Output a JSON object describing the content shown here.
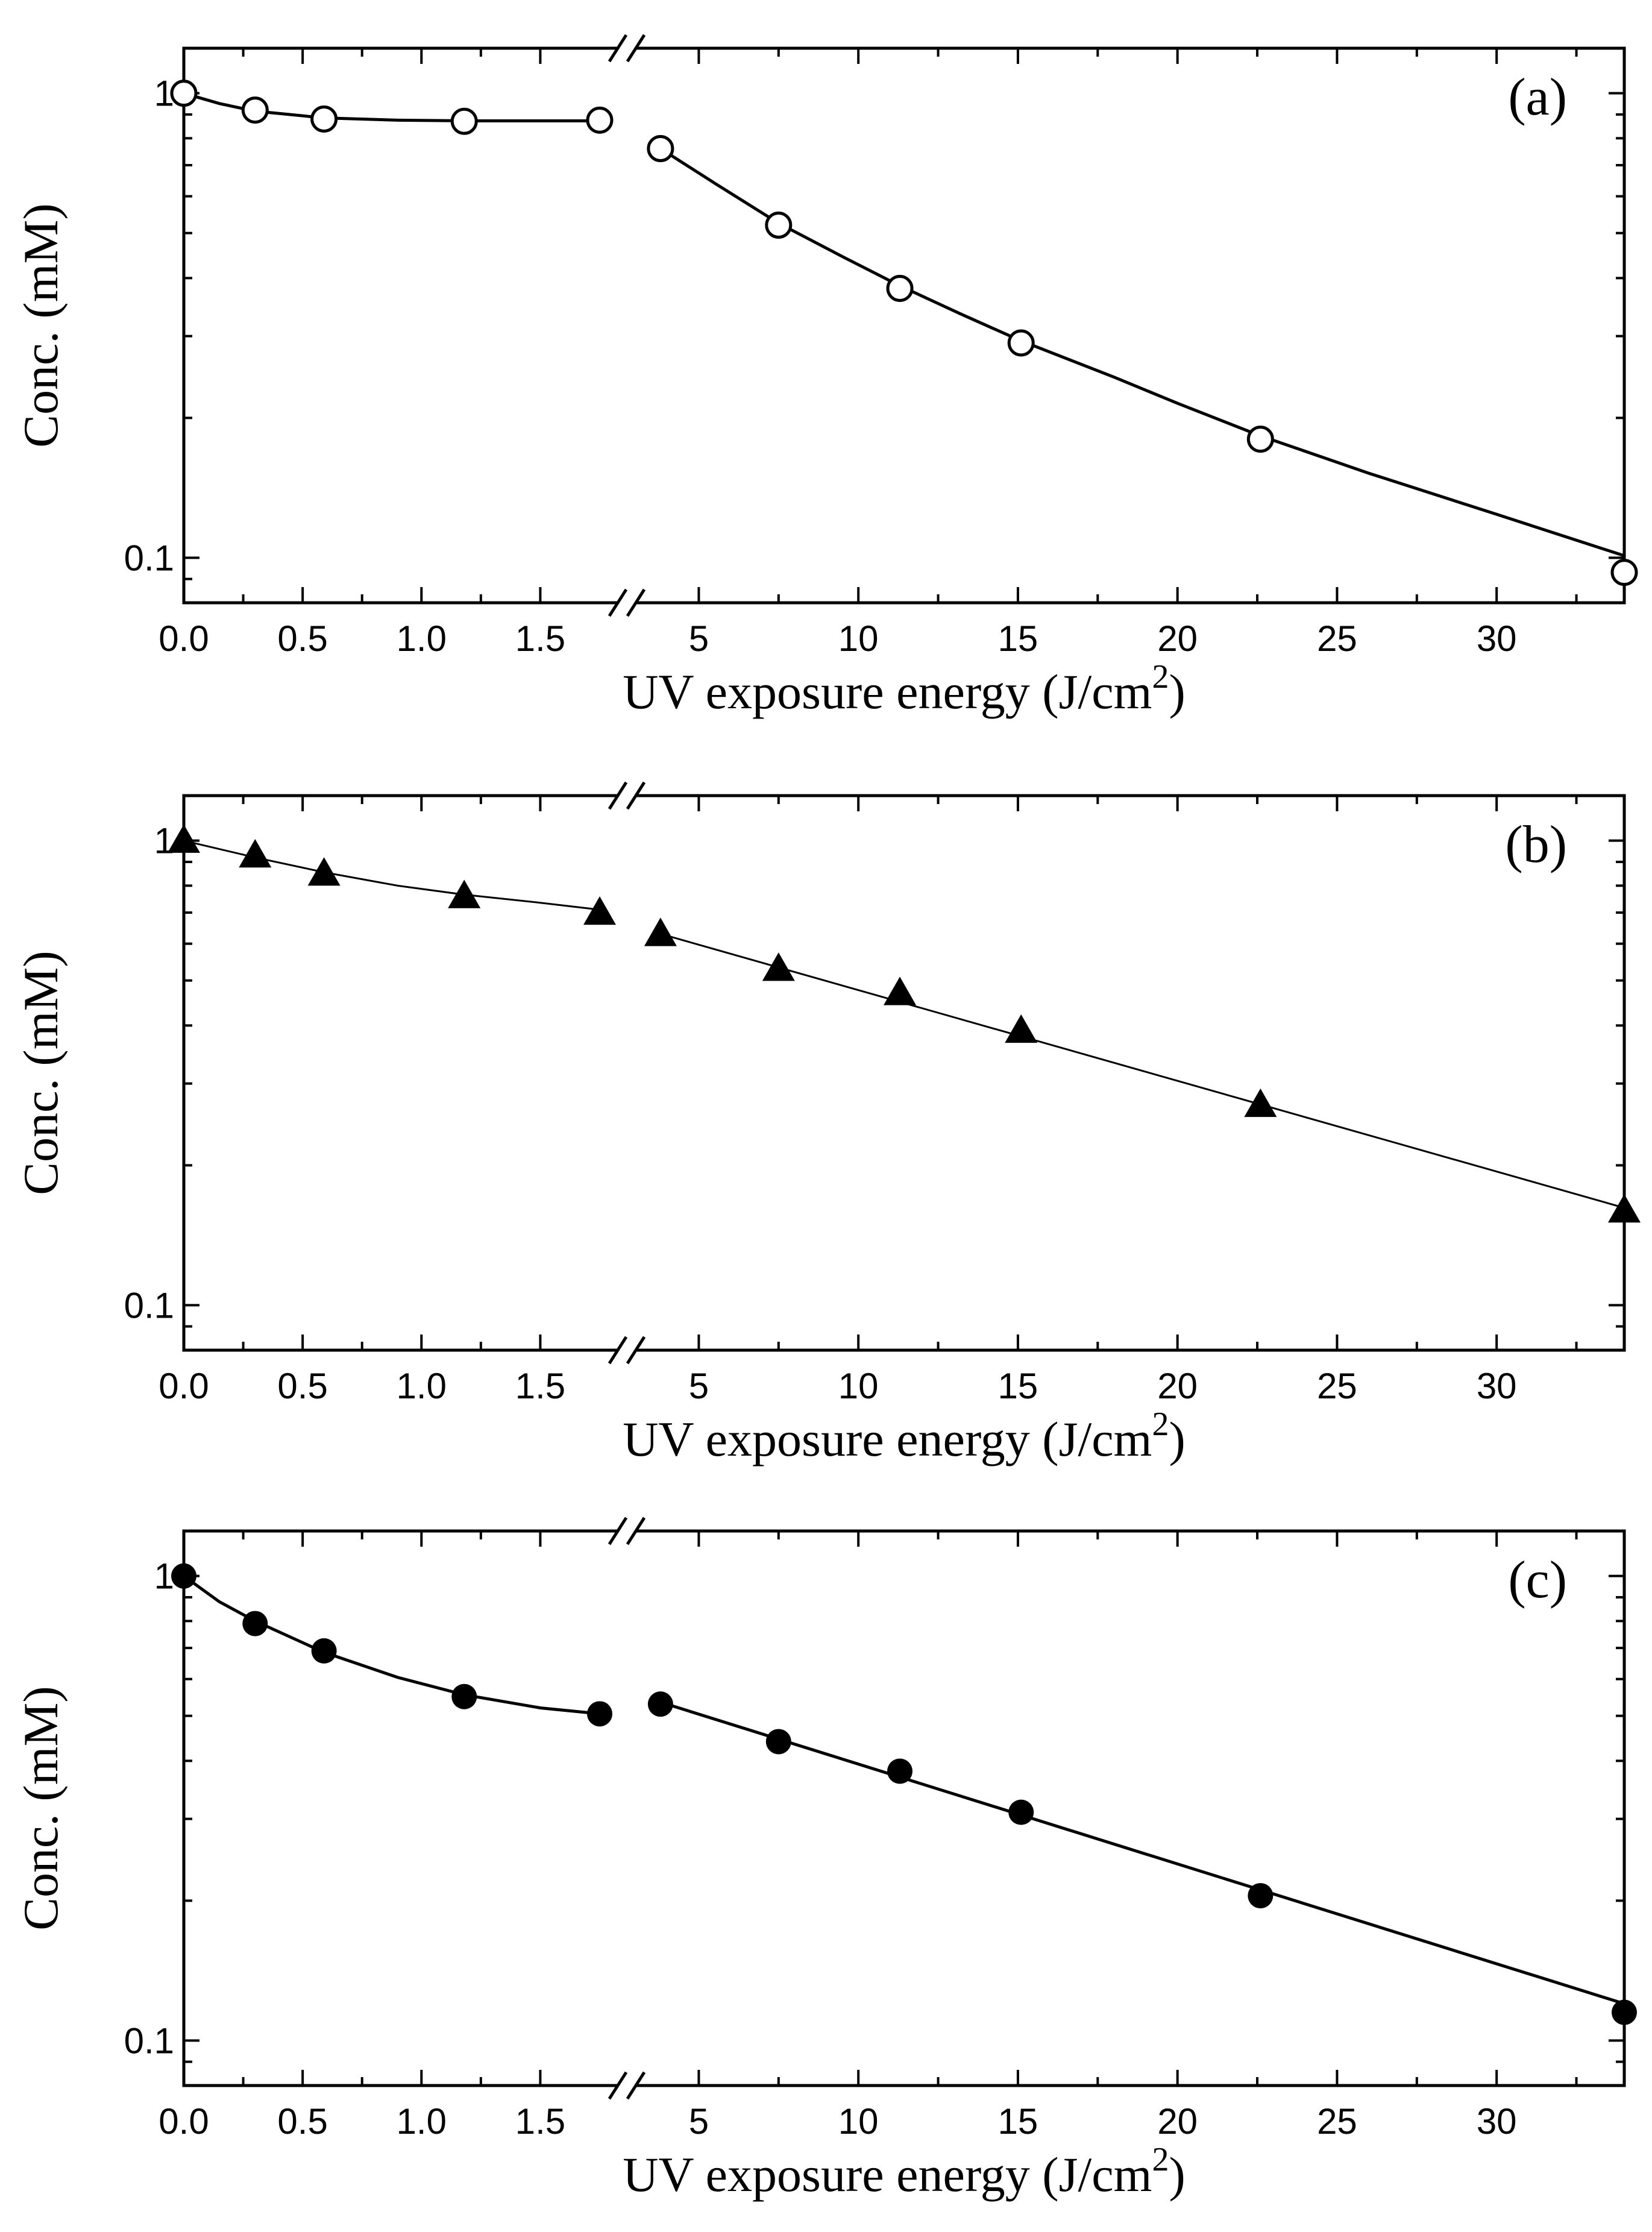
{
  "chart_data": [
    {
      "type": "scatter",
      "panel_label": "(a)",
      "marker": "open-circle",
      "xlabel": "UV exposure energy (J/cm",
      "xlabel_sup": "2",
      "xlabel_close": ")",
      "ylabel": "Conc. (mM)",
      "yscale": "log",
      "ylim": [
        0.08,
        1.25
      ],
      "y_ticks": [
        {
          "value": 0.1,
          "label": "0.1"
        },
        {
          "value": 1,
          "label": "1"
        }
      ],
      "x_break": true,
      "x_left_range": [
        0,
        1.75
      ],
      "x_right_range": [
        3.5,
        34
      ],
      "x_ticks_left": [
        {
          "value": 0.0,
          "label": "0.0"
        },
        {
          "value": 0.5,
          "label": "0.5"
        },
        {
          "value": 1.0,
          "label": "1.0"
        },
        {
          "value": 1.5,
          "label": "1.5"
        }
      ],
      "x_ticks_right": [
        {
          "value": 5,
          "label": "5"
        },
        {
          "value": 10,
          "label": "10"
        },
        {
          "value": 15,
          "label": "15"
        },
        {
          "value": 20,
          "label": "20"
        },
        {
          "value": 25,
          "label": "25"
        },
        {
          "value": 30,
          "label": "30"
        }
      ],
      "points_left": [
        [
          0.0,
          1.0
        ],
        [
          0.3,
          0.92
        ],
        [
          0.59,
          0.88
        ],
        [
          1.18,
          0.87
        ],
        [
          1.75,
          0.875
        ]
      ],
      "points_right": [
        [
          3.8,
          0.76
        ],
        [
          7.5,
          0.52
        ],
        [
          11.3,
          0.38
        ],
        [
          15.1,
          0.29
        ],
        [
          22.6,
          0.18
        ],
        [
          34,
          0.093
        ]
      ],
      "curve_left": [
        [
          0.0,
          1.0
        ],
        [
          0.15,
          0.95
        ],
        [
          0.3,
          0.915
        ],
        [
          0.59,
          0.885
        ],
        [
          0.9,
          0.875
        ],
        [
          1.18,
          0.872
        ],
        [
          1.75,
          0.872
        ]
      ],
      "curve_right": [
        [
          3.8,
          0.76
        ],
        [
          5.5,
          0.64
        ],
        [
          7.5,
          0.525
        ],
        [
          9.5,
          0.445
        ],
        [
          11.3,
          0.385
        ],
        [
          13.2,
          0.335
        ],
        [
          15.1,
          0.293
        ],
        [
          18,
          0.245
        ],
        [
          20,
          0.215
        ],
        [
          22.6,
          0.183
        ],
        [
          26,
          0.152
        ],
        [
          30,
          0.124
        ],
        [
          34,
          0.101
        ]
      ],
      "curve_weight": "bold"
    },
    {
      "type": "scatter",
      "panel_label": "(b)",
      "marker": "filled-triangle",
      "xlabel": "UV exposure energy (J/cm",
      "xlabel_sup": "2",
      "xlabel_close": ")",
      "ylabel": "Conc. (mM)",
      "yscale": "log",
      "ylim": [
        0.08,
        1.25
      ],
      "y_ticks": [
        {
          "value": 0.1,
          "label": "0.1"
        },
        {
          "value": 1,
          "label": "1"
        }
      ],
      "x_break": true,
      "x_left_range": [
        0,
        1.75
      ],
      "x_right_range": [
        3.5,
        34
      ],
      "x_ticks_left": [
        {
          "value": 0.0,
          "label": "0.0"
        },
        {
          "value": 0.5,
          "label": "0.5"
        },
        {
          "value": 1.0,
          "label": "1.0"
        },
        {
          "value": 1.5,
          "label": "1.5"
        }
      ],
      "x_ticks_right": [
        {
          "value": 5,
          "label": "5"
        },
        {
          "value": 10,
          "label": "10"
        },
        {
          "value": 15,
          "label": "15"
        },
        {
          "value": 20,
          "label": "20"
        },
        {
          "value": 25,
          "label": "25"
        },
        {
          "value": 30,
          "label": "30"
        }
      ],
      "points_left": [
        [
          0.0,
          1.0
        ],
        [
          0.3,
          0.93
        ],
        [
          0.59,
          0.85
        ],
        [
          1.18,
          0.76
        ],
        [
          1.75,
          0.7
        ]
      ],
      "points_right": [
        [
          3.8,
          0.63
        ],
        [
          7.5,
          0.53
        ],
        [
          11.3,
          0.47
        ],
        [
          15.1,
          0.39
        ],
        [
          22.6,
          0.27
        ],
        [
          34,
          0.16
        ]
      ],
      "curve_left": [
        [
          0.0,
          1.0
        ],
        [
          0.3,
          0.92
        ],
        [
          0.59,
          0.855
        ],
        [
          0.9,
          0.8
        ],
        [
          1.18,
          0.765
        ],
        [
          1.5,
          0.735
        ],
        [
          1.75,
          0.71
        ]
      ],
      "curve_right": [
        [
          3.8,
          0.63
        ],
        [
          34,
          0.162
        ]
      ],
      "curve_weight": "thin"
    },
    {
      "type": "scatter",
      "panel_label": "(c)",
      "marker": "filled-circle",
      "xlabel": "UV exposure energy (J/cm",
      "xlabel_sup": "2",
      "xlabel_close": ")",
      "ylabel": "Conc. (mM)",
      "yscale": "log",
      "ylim": [
        0.08,
        1.25
      ],
      "y_ticks": [
        {
          "value": 0.1,
          "label": "0.1"
        },
        {
          "value": 1,
          "label": "1"
        }
      ],
      "x_break": true,
      "x_left_range": [
        0,
        1.75
      ],
      "x_right_range": [
        3.5,
        34
      ],
      "x_ticks_left": [
        {
          "value": 0.0,
          "label": "0.0"
        },
        {
          "value": 0.5,
          "label": "0.5"
        },
        {
          "value": 1.0,
          "label": "1.0"
        },
        {
          "value": 1.5,
          "label": "1.5"
        }
      ],
      "x_ticks_right": [
        {
          "value": 5,
          "label": "5"
        },
        {
          "value": 10,
          "label": "10"
        },
        {
          "value": 15,
          "label": "15"
        },
        {
          "value": 20,
          "label": "20"
        },
        {
          "value": 25,
          "label": "25"
        },
        {
          "value": 30,
          "label": "30"
        }
      ],
      "points_left": [
        [
          0.0,
          1.0
        ],
        [
          0.3,
          0.79
        ],
        [
          0.59,
          0.69
        ],
        [
          1.18,
          0.55
        ],
        [
          1.75,
          0.505
        ]
      ],
      "points_right": [
        [
          3.8,
          0.53
        ],
        [
          7.5,
          0.44
        ],
        [
          11.3,
          0.38
        ],
        [
          15.1,
          0.31
        ],
        [
          22.6,
          0.205
        ],
        [
          34,
          0.115
        ]
      ],
      "curve_left": [
        [
          0.0,
          1.0
        ],
        [
          0.15,
          0.88
        ],
        [
          0.3,
          0.8
        ],
        [
          0.59,
          0.685
        ],
        [
          0.9,
          0.605
        ],
        [
          1.18,
          0.555
        ],
        [
          1.5,
          0.52
        ],
        [
          1.75,
          0.505
        ]
      ],
      "curve_right": [
        [
          3.8,
          0.535
        ],
        [
          34,
          0.12
        ]
      ],
      "curve_weight": "bold"
    }
  ]
}
